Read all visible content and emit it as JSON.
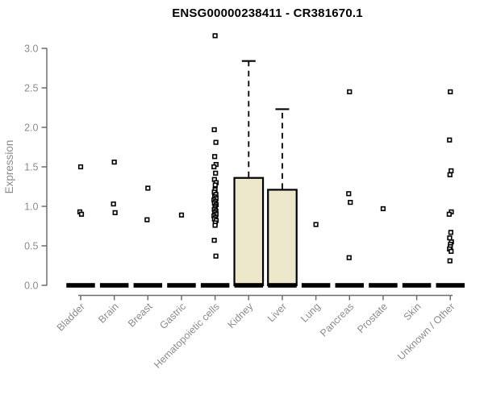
{
  "chart_data": {
    "type": "boxplot",
    "title": "ENSG00000238411 - CR381670.1",
    "xlabel": "",
    "ylabel": "Expression",
    "ylim": [
      0.0,
      3.2
    ],
    "grid": false,
    "legend": "none",
    "ytick_values": [
      0.0,
      0.5,
      1.0,
      1.5,
      2.0,
      2.5,
      3.0
    ],
    "ytick_labels": [
      "0.0",
      "0.5",
      "1.0",
      "1.5",
      "2.0",
      "2.5",
      "3.0"
    ],
    "categories": [
      "Bladder",
      "Brain",
      "Breast",
      "Gastric",
      "Hematopoietic cells",
      "Kidney",
      "Liver",
      "Lung",
      "Pancreas",
      "Prostate",
      "Skin",
      "Unknown / Other"
    ],
    "series": [
      {
        "name": "Bladder",
        "q1": 0,
        "median": 0,
        "q3": 0,
        "whisker_low": 0,
        "whisker_high": 0,
        "points": [
          1.5,
          0.93,
          0.9
        ]
      },
      {
        "name": "Brain",
        "q1": 0,
        "median": 0,
        "q3": 0,
        "whisker_low": 0,
        "whisker_high": 0,
        "points": [
          1.56,
          1.03,
          0.92
        ]
      },
      {
        "name": "Breast",
        "q1": 0,
        "median": 0,
        "q3": 0,
        "whisker_low": 0,
        "whisker_high": 0,
        "points": [
          1.23,
          0.83
        ]
      },
      {
        "name": "Gastric",
        "q1": 0,
        "median": 0,
        "q3": 0,
        "whisker_low": 0,
        "whisker_high": 0,
        "points": [
          0.89
        ]
      },
      {
        "name": "Hematopoietic cells",
        "q1": 0,
        "median": 0,
        "q3": 0,
        "whisker_low": 0,
        "whisker_high": 0,
        "points": [
          3.16,
          1.97,
          1.81,
          1.63,
          1.53,
          1.5,
          1.42,
          1.34,
          1.3,
          1.27,
          1.21,
          1.18,
          1.15,
          1.12,
          1.1,
          1.08,
          1.06,
          1.04,
          1.02,
          1.0,
          0.98,
          0.96,
          0.94,
          0.92,
          0.9,
          0.88,
          0.86,
          0.84,
          0.82,
          0.79,
          0.76,
          0.57,
          0.37
        ]
      },
      {
        "name": "Kidney",
        "q1": 0,
        "median": 0,
        "q3": 1.36,
        "whisker_low": 0,
        "whisker_high": 2.84,
        "points": []
      },
      {
        "name": "Liver",
        "q1": 0,
        "median": 0,
        "q3": 1.21,
        "whisker_low": 0,
        "whisker_high": 2.23,
        "points": []
      },
      {
        "name": "Lung",
        "q1": 0,
        "median": 0,
        "q3": 0,
        "whisker_low": 0,
        "whisker_high": 0,
        "points": [
          0.77
        ]
      },
      {
        "name": "Pancreas",
        "q1": 0,
        "median": 0,
        "q3": 0,
        "whisker_low": 0,
        "whisker_high": 0,
        "points": [
          2.45,
          1.16,
          1.05,
          0.35
        ]
      },
      {
        "name": "Prostate",
        "q1": 0,
        "median": 0,
        "q3": 0,
        "whisker_low": 0,
        "whisker_high": 0,
        "points": [
          0.97
        ]
      },
      {
        "name": "Skin",
        "q1": 0,
        "median": 0,
        "q3": 0,
        "whisker_low": 0,
        "whisker_high": 0,
        "points": []
      },
      {
        "name": "Unknown / Other",
        "q1": 0,
        "median": 0,
        "q3": 0,
        "whisker_low": 0,
        "whisker_high": 0,
        "points": [
          2.45,
          1.84,
          1.45,
          1.4,
          0.93,
          0.9,
          0.67,
          0.6,
          0.55,
          0.52,
          0.49,
          0.46,
          0.43,
          0.31
        ]
      }
    ],
    "colors": {
      "box_fill": "#EDE8CC",
      "box_stroke": "#000000",
      "median_bar": "#000000",
      "point_stroke": "#000000",
      "point_fill": "#ffffff",
      "axis_line": "#6e6e6e",
      "tick_label": "#8c8c8c",
      "title_color": "#000000"
    }
  }
}
